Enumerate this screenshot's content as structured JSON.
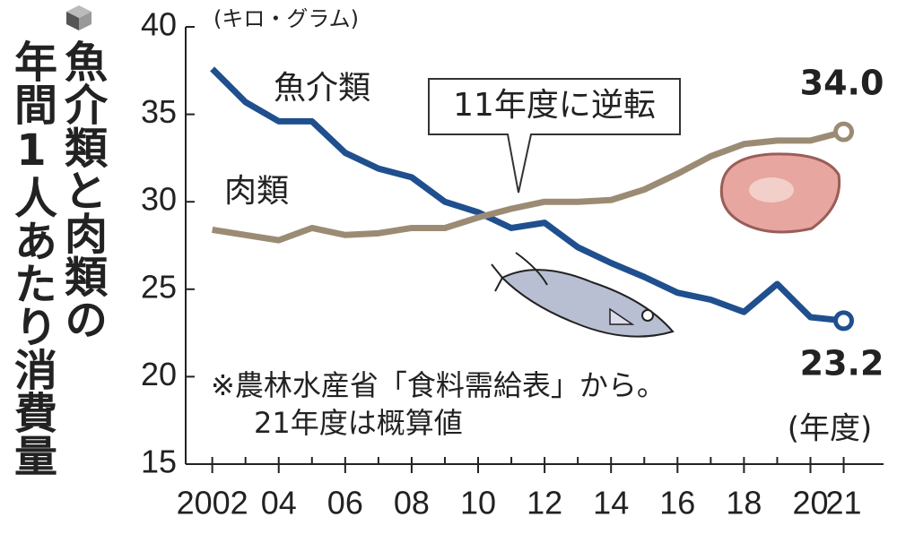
{
  "chart_data": {
    "type": "line",
    "title": [
      "魚介類と肉類の",
      "年間1人あたり消費量"
    ],
    "y_unit": "(キロ・グラム)",
    "x_unit": "(年度)",
    "annotation": "11年度に逆転",
    "note": [
      "※農林水産省「食料需給表」から。",
      "21年度は概算値"
    ],
    "x": [
      2002,
      2003,
      2004,
      2005,
      2006,
      2007,
      2008,
      2009,
      2010,
      2011,
      2012,
      2013,
      2014,
      2015,
      2016,
      2017,
      2018,
      2019,
      2020,
      2021
    ],
    "series": [
      {
        "name": "魚介類",
        "color": "#1f4f8e",
        "values": [
          37.6,
          35.7,
          34.6,
          34.6,
          32.8,
          31.9,
          31.4,
          30.0,
          29.4,
          28.5,
          28.8,
          27.4,
          26.5,
          25.7,
          24.8,
          24.4,
          23.7,
          25.3,
          23.4,
          23.2
        ],
        "value_labels": [
          null,
          null,
          null,
          null,
          null,
          null,
          null,
          null,
          null,
          null,
          null,
          null,
          null,
          null,
          null,
          null,
          null,
          null,
          null,
          "23.2"
        ]
      },
      {
        "name": "肉類",
        "color": "#9c8b74",
        "values": [
          28.4,
          28.1,
          27.8,
          28.5,
          28.1,
          28.2,
          28.5,
          28.5,
          29.1,
          29.6,
          30.0,
          30.0,
          30.1,
          30.7,
          31.6,
          32.6,
          33.3,
          33.5,
          33.5,
          34.0
        ],
        "value_labels": [
          null,
          null,
          null,
          null,
          null,
          null,
          null,
          null,
          null,
          null,
          null,
          null,
          null,
          null,
          null,
          null,
          null,
          null,
          null,
          "34.0"
        ]
      }
    ],
    "xlim": [
      2001.2,
      2022.2
    ],
    "xticks": [
      {
        "value": 2002,
        "label": "2002"
      },
      {
        "value": 2004,
        "label": "04"
      },
      {
        "value": 2006,
        "label": "06"
      },
      {
        "value": 2008,
        "label": "08"
      },
      {
        "value": 2010,
        "label": "10"
      },
      {
        "value": 2012,
        "label": "12"
      },
      {
        "value": 2014,
        "label": "14"
      },
      {
        "value": 2016,
        "label": "16"
      },
      {
        "value": 2018,
        "label": "18"
      },
      {
        "value": 2020,
        "label": "20"
      },
      {
        "value": 2021,
        "label": "21"
      }
    ],
    "ylim": [
      15,
      40
    ],
    "yticks": [
      15,
      20,
      25,
      30,
      35,
      40
    ],
    "grid": false
  }
}
